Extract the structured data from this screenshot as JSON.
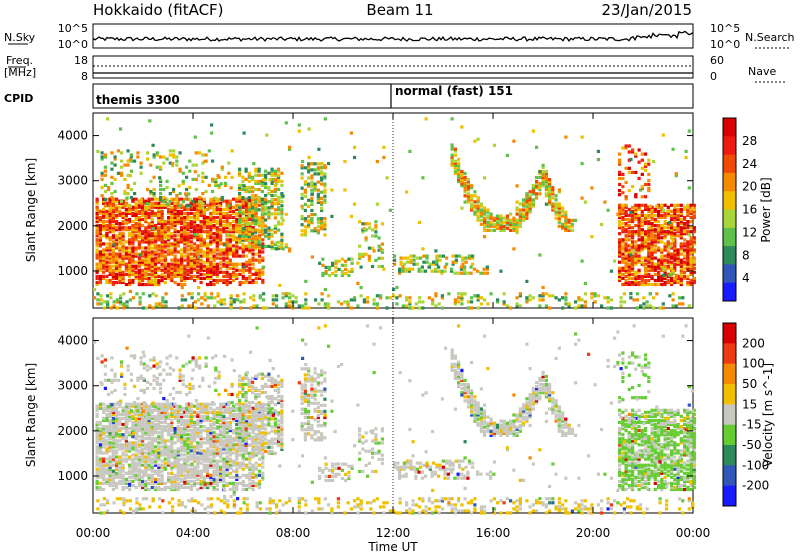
{
  "header": {
    "radar": "Hokkaido (fitACF)",
    "beam": "Beam 11",
    "date": "23/Jan/2015"
  },
  "strips": {
    "nsky_label": "N.Sky",
    "nsky_ticks": [
      "10^5",
      "10^0"
    ],
    "nsearch_label": "N.Search",
    "nsearch_ticks": [
      "10^5",
      "10^0"
    ],
    "freq_label_1": "Freq.",
    "freq_label_2": "[MHz]",
    "freq_ticks": [
      "18",
      "8"
    ],
    "nave_label": "Nave",
    "nave_ticks": [
      "60",
      "0"
    ],
    "cpid_label": "CPID",
    "cpid_segments": [
      {
        "label": "themis 3300",
        "start_hour": 0
      },
      {
        "label": "normal (fast) 151",
        "start_hour": 12
      }
    ]
  },
  "chart_data": [
    {
      "type": "heatmap",
      "panel": "power",
      "ylabel": "Slant Range [km]",
      "y_ticks": [
        1000,
        2000,
        3000,
        4000
      ],
      "ylim": [
        180,
        4500
      ],
      "xlim": [
        0,
        24
      ],
      "colorbar_label": "Power [dB]",
      "colorbar_ticks": [
        4,
        8,
        12,
        16,
        20,
        24,
        28
      ],
      "colorbar_colors": [
        "#1a1aff",
        "#2f56b8",
        "#2e8a5a",
        "#5fc04a",
        "#a8d63a",
        "#f0c000",
        "#f58a00",
        "#f04a00",
        "#ee1a10",
        "#d80000"
      ]
    },
    {
      "type": "heatmap",
      "panel": "velocity",
      "ylabel": "Slant Range [km]",
      "y_ticks": [
        1000,
        2000,
        3000,
        4000
      ],
      "ylim": [
        180,
        4500
      ],
      "xlim": [
        0,
        24
      ],
      "colorbar_label": "Velocity [m s^-1]",
      "colorbar_ticks": [
        200,
        100,
        50,
        15,
        -15,
        -50,
        -100,
        -200
      ],
      "colorbar_colors": [
        "#1a1aff",
        "#2f56b8",
        "#2e8a5a",
        "#66cc33",
        "#c8c8c0",
        "#f0c000",
        "#f58a00",
        "#ee3a10",
        "#d80000"
      ]
    }
  ],
  "x_axis": {
    "ticks": [
      "00:00",
      "04:00",
      "08:00",
      "12:00",
      "16:00",
      "20:00",
      "00:00"
    ],
    "label": "Time UT"
  }
}
